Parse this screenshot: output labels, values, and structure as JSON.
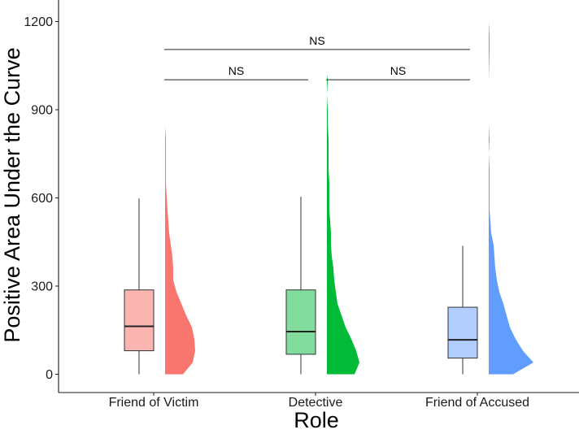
{
  "chart_data": {
    "type": "raincloud",
    "title": "",
    "xlabel": "Role",
    "ylabel": "Positive Area Under the Curve",
    "ylim": [
      -62,
      1265
    ],
    "yticks": [
      0,
      300,
      600,
      900,
      1200
    ],
    "categories": [
      "Friend of Victim",
      "Detective",
      "Friend of Accused"
    ],
    "colors": {
      "Friend of Victim": {
        "fill": "#f8766d",
        "box": "#fbb5b0"
      },
      "Detective": {
        "fill": "#00ba38",
        "box": "#82dc9d"
      },
      "Friend of Accused": {
        "fill": "#619cff",
        "box": "#b2cdff"
      }
    },
    "boxes": [
      {
        "category": "Friend of Victim",
        "min": 0,
        "q1": 80,
        "median": 163,
        "q3": 287,
        "max": 598
      },
      {
        "category": "Detective",
        "min": 0,
        "q1": 68,
        "median": 145,
        "q3": 287,
        "max": 604
      },
      {
        "category": "Friend of Accused",
        "min": 0,
        "q1": 55,
        "median": 117,
        "q3": 228,
        "max": 437
      }
    ],
    "densities": [
      {
        "category": "Friend of Victim",
        "max": 845,
        "profile": [
          [
            0,
            22
          ],
          [
            40,
            34
          ],
          [
            80,
            37
          ],
          [
            120,
            36
          ],
          [
            160,
            33
          ],
          [
            200,
            26
          ],
          [
            240,
            20
          ],
          [
            280,
            14
          ],
          [
            320,
            10
          ],
          [
            360,
            10
          ],
          [
            400,
            9
          ],
          [
            440,
            7
          ],
          [
            480,
            5
          ],
          [
            520,
            4
          ],
          [
            560,
            3
          ],
          [
            600,
            2
          ],
          [
            650,
            1
          ],
          [
            700,
            1
          ],
          [
            750,
            1
          ],
          [
            800,
            1
          ],
          [
            845,
            0
          ]
        ]
      },
      {
        "category": "Detective",
        "max": 1020,
        "profile": [
          [
            0,
            34
          ],
          [
            40,
            40
          ],
          [
            80,
            36
          ],
          [
            120,
            30
          ],
          [
            160,
            23
          ],
          [
            200,
            18
          ],
          [
            240,
            13
          ],
          [
            280,
            11
          ],
          [
            320,
            9
          ],
          [
            360,
            8
          ],
          [
            400,
            6
          ],
          [
            440,
            5
          ],
          [
            480,
            5
          ],
          [
            520,
            4
          ],
          [
            560,
            3
          ],
          [
            600,
            3
          ],
          [
            650,
            3
          ],
          [
            700,
            2
          ],
          [
            750,
            2
          ],
          [
            800,
            2
          ],
          [
            850,
            1
          ],
          [
            900,
            1
          ],
          [
            950,
            0
          ],
          [
            1000,
            1
          ],
          [
            1020,
            0
          ]
        ]
      },
      {
        "category": "Friend of Accused",
        "max": 1260,
        "profile": [
          [
            0,
            30
          ],
          [
            40,
            55
          ],
          [
            80,
            42
          ],
          [
            120,
            33
          ],
          [
            160,
            26
          ],
          [
            200,
            22
          ],
          [
            240,
            18
          ],
          [
            280,
            13
          ],
          [
            320,
            10
          ],
          [
            360,
            8
          ],
          [
            400,
            7
          ],
          [
            440,
            6
          ],
          [
            480,
            3
          ],
          [
            520,
            2
          ],
          [
            560,
            1
          ],
          [
            600,
            1
          ],
          [
            650,
            1
          ],
          [
            700,
            1
          ],
          [
            750,
            0
          ],
          [
            800,
            1
          ],
          [
            850,
            0
          ],
          [
            900,
            0
          ],
          [
            1000,
            0
          ],
          [
            1100,
            1
          ],
          [
            1150,
            1
          ],
          [
            1200,
            0
          ],
          [
            1260,
            0
          ]
        ]
      }
    ],
    "comparisons": [
      {
        "from": "Friend of Victim",
        "to": "Detective",
        "label": "NS",
        "y": 1002,
        "level": 1
      },
      {
        "from": "Detective",
        "to": "Friend of Accused",
        "label": "NS",
        "y": 1002,
        "level": 1
      },
      {
        "from": "Friend of Victim",
        "to": "Friend of Accused",
        "label": "NS",
        "y": 1105,
        "level": 2
      }
    ]
  }
}
